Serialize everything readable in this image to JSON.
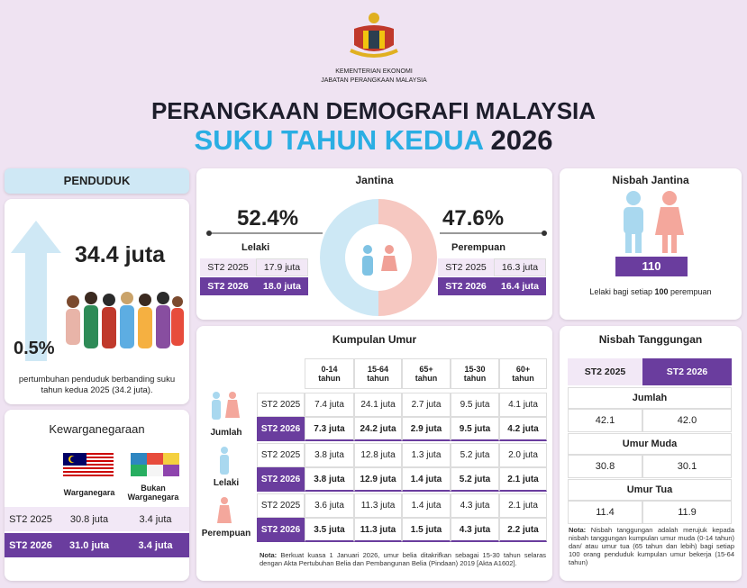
{
  "header": {
    "ministry": "KEMENTERIAN EKONOMI",
    "department": "JABATAN PERANGKAAN MALAYSIA",
    "title": "PERANGKAAN DEMOGRAFI MALAYSIA",
    "subtitle": "SUKU TAHUN KEDUA",
    "year": "2026"
  },
  "population": {
    "heading": "PENDUDUK",
    "total": "34.4 juta",
    "growth": "0.5%",
    "note": "pertumbuhan penduduk berbanding suku tahun kedua 2025 (34.2 juta)."
  },
  "citizenship": {
    "title": "Kewarganegaraan",
    "columns": [
      "Warganegara",
      "Bukan Warganegara"
    ],
    "rows": [
      [
        "ST2 2025",
        "30.8 juta",
        "3.4 juta"
      ],
      [
        "ST2 2026",
        "31.0 juta",
        "3.4 juta"
      ]
    ]
  },
  "gender": {
    "title": "Jantina",
    "male": {
      "share": "52.4%",
      "label": "Lelaki",
      "rows": [
        [
          "ST2 2025",
          "17.9 juta"
        ],
        [
          "ST2 2026",
          "18.0 juta"
        ]
      ]
    },
    "female": {
      "share": "47.6%",
      "label": "Perempuan",
      "rows": [
        [
          "ST2 2025",
          "16.3 juta"
        ],
        [
          "ST2 2026",
          "16.4 juta"
        ]
      ]
    }
  },
  "sex_ratio": {
    "title": "Nisbah Jantina",
    "value": "110",
    "caption": [
      "Lelaki bagi setiap",
      "100",
      "perempuan"
    ]
  },
  "age_groups": {
    "title": "Kumpulan Umur",
    "columns": [
      "0-14 tahun",
      "15-64 tahun",
      "65+ tahun",
      "15-30 tahun",
      "60+ tahun"
    ],
    "groups": [
      {
        "label": "Jumlah",
        "rows": [
          [
            "ST2 2025",
            "7.4 juta",
            "24.1 juta",
            "2.7 juta",
            "9.5 juta",
            "4.1 juta"
          ],
          [
            "ST2 2026",
            "7.3 juta",
            "24.2 juta",
            "2.9 juta",
            "9.5 juta",
            "4.2 juta"
          ]
        ]
      },
      {
        "label": "Lelaki",
        "rows": [
          [
            "ST2 2025",
            "3.8 juta",
            "12.8 juta",
            "1.3 juta",
            "5.2 juta",
            "2.0 juta"
          ],
          [
            "ST2 2026",
            "3.8 juta",
            "12.9 juta",
            "1.4 juta",
            "5.2 juta",
            "2.1 juta"
          ]
        ]
      },
      {
        "label": "Perempuan",
        "rows": [
          [
            "ST2 2025",
            "3.6 juta",
            "11.3 juta",
            "1.4 juta",
            "4.3 juta",
            "2.1 juta"
          ],
          [
            "ST2 2026",
            "3.5 juta",
            "11.3 juta",
            "1.5 juta",
            "4.3 juta",
            "2.2 juta"
          ]
        ]
      }
    ],
    "note_label": "Nota:",
    "note": "Berkuat kuasa 1 Januari 2026, umur belia ditakrifkan sebagai 15-30 tahun selaras dengan Akta Pertubuhan Belia dan Pembangunan Belia (Pindaan) 2019 [Akta A1602]."
  },
  "dependency": {
    "title": "Nisbah Tanggungan",
    "columns": [
      "ST2 2025",
      "ST2 2026"
    ],
    "groups": [
      {
        "label": "Jumlah",
        "values": [
          "42.1",
          "42.0"
        ]
      },
      {
        "label": "Umur Muda",
        "values": [
          "30.8",
          "30.1"
        ]
      },
      {
        "label": "Umur Tua",
        "values": [
          "11.4",
          "11.9"
        ]
      }
    ],
    "note_label": "Nota:",
    "note": "Nisbah tanggungan adalah merujuk kepada nisbah tanggungan kumpulan umur muda (0-14 tahun) dan/ atau umur tua (65 tahun dan lebih) bagi setiap 100 orang penduduk kumpulan umur bekerja (15-64 tahun)"
  }
}
